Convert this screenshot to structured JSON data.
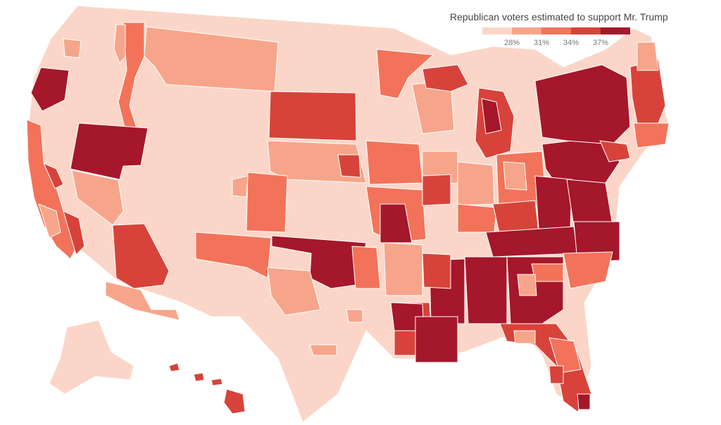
{
  "legend": {
    "title": "Republican voters estimated to support Mr. Trump",
    "ticks": [
      "28%",
      "31%",
      "34%",
      "37%"
    ],
    "bins": [
      "#fbd6c8",
      "#f7a58a",
      "#f2735a",
      "#d7433a",
      "#a5172b"
    ]
  },
  "map": {
    "subject": "Estimated support for Mr. Trump among Republican voters, by district",
    "colors": {
      "background": "#ffffff",
      "border": "#ffffff"
    }
  }
}
